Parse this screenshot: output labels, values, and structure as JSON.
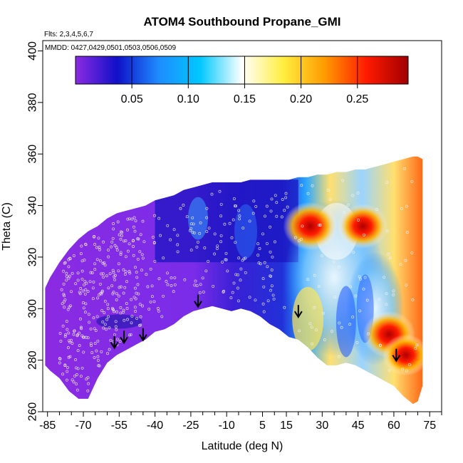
{
  "chart_data": {
    "type": "heatmap",
    "title": "ATOM4 Southbound Propane_GMI",
    "flights_note": "Flts: 2,3,4,5,6,7",
    "dates_note": "MMDD: 0427,0429,0501,0503,0506,0509",
    "xlabel": "Latitude (deg N)",
    "ylabel": "Theta (C)",
    "xlim": [
      -87,
      80
    ],
    "ylim": [
      260,
      404
    ],
    "x_ticks": [
      "-85",
      "-70",
      "-55",
      "-40",
      "-25",
      "-10",
      "5",
      "15",
      "30",
      "45",
      "60",
      "75"
    ],
    "x_tick_values": [
      -85,
      -70,
      -55,
      -40,
      -25,
      -10,
      5,
      15,
      30,
      45,
      60,
      75
    ],
    "y_ticks": [
      "260",
      "280",
      "300",
      "320",
      "340",
      "360",
      "380",
      "400"
    ],
    "y_tick_values": [
      260,
      280,
      300,
      320,
      340,
      360,
      380,
      400
    ],
    "colorbar": {
      "range": [
        0.0,
        0.295
      ],
      "tick_labels": [
        "0.05",
        "0.10",
        "0.15",
        "0.20",
        "0.25"
      ],
      "tick_values": [
        0.05,
        0.1,
        0.15,
        0.2,
        0.25
      ],
      "colors": [
        "#8b2be2",
        "#1010c8",
        "#1e8cff",
        "#00c8ff",
        "#ffffff",
        "#ffee40",
        "#ff9a00",
        "#ff1a00",
        "#a00000"
      ]
    },
    "field_envelope": {
      "latitude": [
        -86,
        -84,
        -80,
        -76,
        -72,
        -68,
        -64,
        -60,
        -56,
        -52,
        -48,
        -44,
        -40,
        -36,
        -32,
        -28,
        -24,
        -20,
        -16,
        -12,
        -8,
        -4,
        0,
        4,
        8,
        12,
        16,
        20,
        24,
        28,
        32,
        36,
        40,
        44,
        48,
        52,
        56,
        60,
        64,
        68,
        70,
        72
      ],
      "theta_top": [
        308,
        312,
        318,
        323,
        327,
        330,
        332,
        335,
        337,
        338,
        339,
        340,
        342,
        343,
        344,
        346,
        347,
        348,
        349,
        349,
        349,
        349,
        350,
        350,
        350,
        350,
        350,
        351,
        351,
        352,
        352,
        353,
        353,
        354,
        354,
        355,
        356,
        357,
        358,
        359,
        359,
        358
      ],
      "theta_bottom": [
        278,
        276,
        273,
        268,
        265,
        265,
        273,
        279,
        282,
        284,
        286,
        288,
        291,
        292,
        294,
        297,
        299,
        300,
        301,
        300,
        299,
        300,
        299,
        297,
        294,
        292,
        289,
        288,
        285,
        281,
        278,
        278,
        279,
        278,
        276,
        274,
        272,
        270,
        266,
        263,
        264,
        270
      ]
    },
    "hotspots": [
      {
        "latitude": 25,
        "theta": 332,
        "value": 0.27
      },
      {
        "latitude": 47,
        "theta": 332,
        "value": 0.25
      },
      {
        "latitude": 58,
        "theta": 290,
        "value": 0.26
      },
      {
        "latitude": 65,
        "theta": 282,
        "value": 0.23
      }
    ],
    "arrows_latitude": [
      -57,
      -53,
      -45,
      -22,
      20,
      61
    ],
    "arrows_theta": [
      285,
      287,
      288,
      301,
      297,
      280
    ]
  }
}
